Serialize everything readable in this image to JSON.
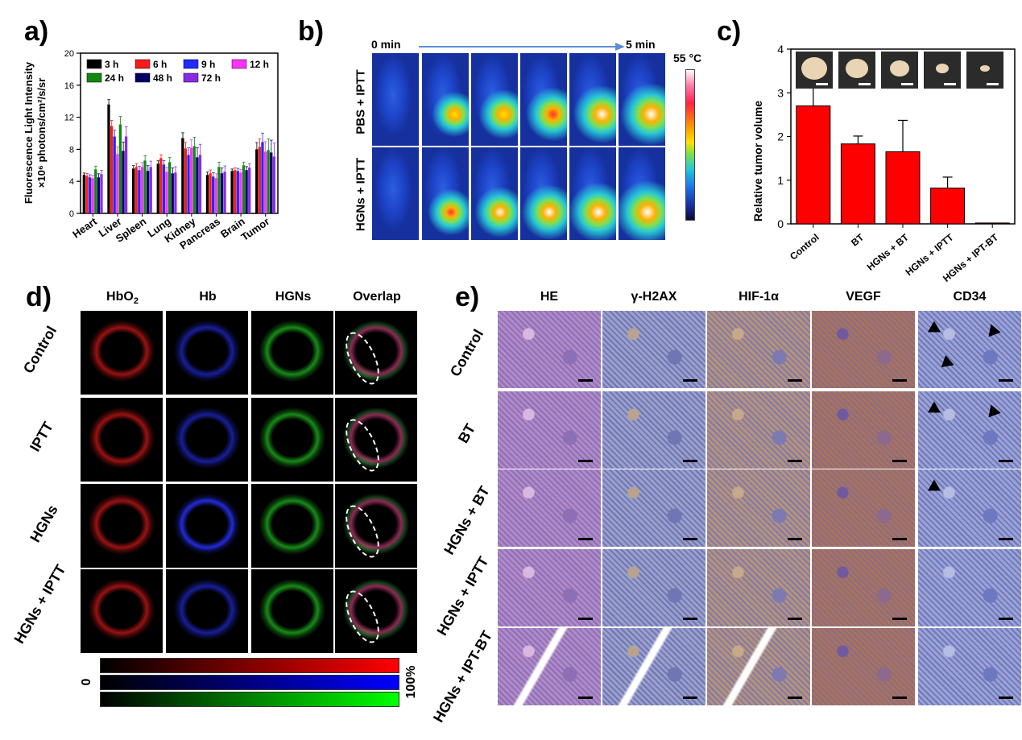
{
  "panel_labels": {
    "a": "a)",
    "b": "b)",
    "c": "c)",
    "d": "d)",
    "e": "e)"
  },
  "chart_data": [
    {
      "type": "bar",
      "ylabel_line1": "Fluorescence Light Intensity",
      "ylabel_line2": "×10⁶ photons/cm²/s/sr",
      "categories": [
        "Heart",
        "Liver",
        "Spleen",
        "Lung",
        "Kidney",
        "Pancreas",
        "Brain",
        "Tumor"
      ],
      "ylim": [
        0,
        20
      ],
      "yticks": [
        "0",
        "4",
        "8",
        "12",
        "16",
        "20"
      ],
      "legend_position": "top-left",
      "series": [
        {
          "name": "3 h",
          "color": "#000000",
          "values": [
            4.8,
            13.6,
            5.6,
            6.2,
            9.4,
            4.8,
            5.3,
            8.0
          ]
        },
        {
          "name": "6 h",
          "color": "#ff1a1a",
          "values": [
            4.7,
            10.9,
            5.8,
            6.9,
            8.1,
            5.0,
            5.4,
            8.3
          ]
        },
        {
          "name": "9 h",
          "color": "#1f2bff",
          "values": [
            4.5,
            9.6,
            5.4,
            6.1,
            7.3,
            4.6,
            5.3,
            8.9
          ]
        },
        {
          "name": "12 h",
          "color": "#ff33ff",
          "values": [
            4.4,
            7.4,
            5.8,
            5.2,
            8.2,
            4.4,
            5.1,
            7.7
          ]
        },
        {
          "name": "24 h",
          "color": "#118811",
          "values": [
            5.5,
            11.1,
            6.6,
            6.4,
            8.4,
            5.8,
            6.0,
            7.9
          ]
        },
        {
          "name": "48 h",
          "color": "#000066",
          "values": [
            4.5,
            7.8,
            5.3,
            5.0,
            7.0,
            5.0,
            5.4,
            7.6
          ]
        },
        {
          "name": "72 h",
          "color": "#8a2be2",
          "values": [
            4.9,
            9.6,
            5.8,
            5.1,
            7.3,
            5.2,
            5.7,
            7.1
          ]
        }
      ],
      "errors": [
        0.4,
        1.0,
        0.6,
        0.6,
        1.1,
        0.6,
        0.4,
        1.4
      ]
    },
    {
      "type": "bar",
      "ylabel": "Relative tumor volume",
      "categories": [
        "Control",
        "BT",
        "HGNs + BT",
        "HGNs + IPTT",
        "HGNs + IPT-BT"
      ],
      "values": [
        2.7,
        1.83,
        1.65,
        0.82,
        0.02
      ],
      "errors": [
        0.42,
        0.18,
        0.72,
        0.25,
        0.0
      ],
      "ylim": [
        0,
        4
      ],
      "yticks": [
        "0",
        "1",
        "2",
        "3",
        "4"
      ],
      "color": "#ff0000"
    }
  ],
  "panel_b": {
    "time_start": "0 min",
    "time_end": "5 min",
    "temp_label": "55 °C",
    "rows": [
      "PBS + IPTT",
      "HGNs + IPTT"
    ]
  },
  "panel_d": {
    "columns": [
      "HbO",
      "Hb",
      "HGNs",
      "Overlap"
    ],
    "hbo_sub": "2",
    "rows": [
      "Control",
      "IPTT",
      "HGNs",
      "HGNs + IPTT"
    ],
    "scale_min": "0",
    "scale_max": "100%"
  },
  "panel_e": {
    "columns": [
      "HE",
      "γ-H2AX",
      "HIF-1α",
      "VEGF",
      "CD34"
    ],
    "rows": [
      "Control",
      "BT",
      "HGNs + BT",
      "HGNs + IPTT",
      "HGNs + IPT-BT"
    ]
  }
}
